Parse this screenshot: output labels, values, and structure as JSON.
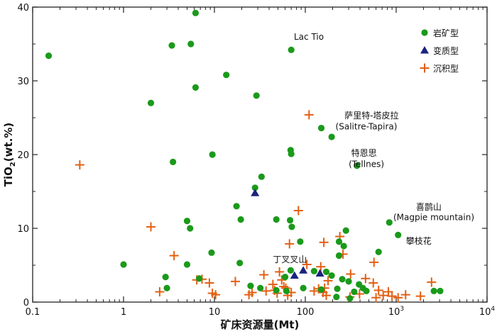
{
  "chart_data": {
    "type": "scatter",
    "xlabel": "矿床资源量(Mt)",
    "ylabel_main": "TiO",
    "ylabel_sub": "2",
    "ylabel_tail": "(wt.%)",
    "xscale": "log",
    "xlim": [
      0.1,
      10000
    ],
    "ylim": [
      0,
      40
    ],
    "x_ticks": [
      {
        "value": 0.1,
        "label": "0.1"
      },
      {
        "value": 1,
        "label": "1"
      },
      {
        "value": 10,
        "label": "10"
      },
      {
        "value": 100,
        "label": "100"
      },
      {
        "value": 1000,
        "label": "10",
        "sup": "3"
      },
      {
        "value": 10000,
        "label": "10",
        "sup": "4"
      }
    ],
    "y_ticks": [
      0,
      10,
      20,
      30,
      40
    ],
    "legend_position": "top-right",
    "series": [
      {
        "name": "岩矿型",
        "marker": "circle",
        "color": "#1a9a1a",
        "points": [
          [
            0.15,
            33.4
          ],
          [
            3.4,
            34.8
          ],
          [
            5.5,
            35.0
          ],
          [
            6.2,
            39.2
          ],
          [
            6.2,
            29.1
          ],
          [
            2.0,
            27.0
          ],
          [
            13.5,
            30.8
          ],
          [
            29,
            28.0
          ],
          [
            70,
            34.2
          ],
          [
            3.5,
            19.0
          ],
          [
            9.5,
            20.0
          ],
          [
            69,
            20.6
          ],
          [
            70,
            20.1
          ],
          [
            150,
            23.6
          ],
          [
            195,
            22.4
          ],
          [
            370,
            18.5
          ],
          [
            33,
            17.0
          ],
          [
            28,
            15.5
          ],
          [
            17.5,
            13.0
          ],
          [
            19.5,
            11.2
          ],
          [
            5.0,
            11.0
          ],
          [
            5.4,
            10.0
          ],
          [
            48,
            11.2
          ],
          [
            68,
            11.1
          ],
          [
            71,
            10.2
          ],
          [
            840,
            10.8
          ],
          [
            1050,
            9.1
          ],
          [
            280,
            9.7
          ],
          [
            88,
            8.2
          ],
          [
            235,
            8.2
          ],
          [
            265,
            7.6
          ],
          [
            640,
            6.8
          ],
          [
            235,
            6.3
          ],
          [
            9.3,
            6.7
          ],
          [
            1.0,
            5.1
          ],
          [
            5.0,
            5.1
          ],
          [
            19,
            5.3
          ],
          [
            2.9,
            3.4
          ],
          [
            6.8,
            3.2
          ],
          [
            60,
            3.4
          ],
          [
            69,
            4.3
          ],
          [
            125,
            4.2
          ],
          [
            170,
            4.1
          ],
          [
            195,
            3.6
          ],
          [
            255,
            3.1
          ],
          [
            300,
            2.8
          ],
          [
            390,
            2.4
          ],
          [
            3.0,
            1.9
          ],
          [
            25,
            2.2
          ],
          [
            32,
            1.9
          ],
          [
            48,
            1.6
          ],
          [
            62,
            1.5
          ],
          [
            95,
            1.9
          ],
          [
            150,
            1.7
          ],
          [
            225,
            1.8
          ],
          [
            345,
            1.4
          ],
          [
            430,
            1.9
          ],
          [
            470,
            1.5
          ],
          [
            2600,
            1.5
          ],
          [
            3050,
            1.5
          ],
          [
            220,
            0.7
          ],
          [
            310,
            0.5
          ]
        ]
      },
      {
        "name": "变质型",
        "marker": "triangle",
        "color": "#1a237e",
        "points": [
          [
            28,
            14.8
          ],
          [
            76,
            3.6
          ],
          [
            95,
            4.3
          ],
          [
            145,
            3.9
          ]
        ]
      },
      {
        "name": "沉积型",
        "marker": "plus",
        "color": "#e35f12",
        "points": [
          [
            0.33,
            18.6
          ],
          [
            2.0,
            10.2
          ],
          [
            3.6,
            6.3
          ],
          [
            2.5,
            1.4
          ],
          [
            6.4,
            3.0
          ],
          [
            7.3,
            3.1
          ],
          [
            8.8,
            2.6
          ],
          [
            9.5,
            1.2
          ],
          [
            10.3,
            1.0
          ],
          [
            17.0,
            2.8
          ],
          [
            24,
            1.0
          ],
          [
            26,
            1.3
          ],
          [
            35,
            3.7
          ],
          [
            37,
            1.5
          ],
          [
            44,
            2.4
          ],
          [
            46,
            1.6
          ],
          [
            49,
            1.2
          ],
          [
            52,
            4.1
          ],
          [
            55,
            3.0
          ],
          [
            58,
            2.1
          ],
          [
            61,
            1.9
          ],
          [
            64,
            0.9
          ],
          [
            70,
            1.3
          ],
          [
            84,
            12.4
          ],
          [
            110,
            25.4
          ],
          [
            67,
            7.9
          ],
          [
            104,
            5.1
          ],
          [
            125,
            1.5
          ],
          [
            140,
            1.8
          ],
          [
            148,
            4.8
          ],
          [
            157,
            1.3
          ],
          [
            163,
            1.9
          ],
          [
            178,
            2.9
          ],
          [
            170,
            0.9
          ],
          [
            160,
            8.1
          ],
          [
            240,
            8.9
          ],
          [
            260,
            6.5
          ],
          [
            315,
            3.8
          ],
          [
            395,
            1.1
          ],
          [
            460,
            3.2
          ],
          [
            560,
            2.6
          ],
          [
            570,
            5.4
          ],
          [
            640,
            1.6
          ],
          [
            720,
            0.9
          ],
          [
            820,
            1.4
          ],
          [
            900,
            0.8
          ],
          [
            1270,
            1.0
          ],
          [
            1850,
            0.8
          ],
          [
            2450,
            2.7
          ],
          [
            310,
            0.7
          ],
          [
            600,
            0.6
          ],
          [
            1050,
            0.6
          ]
        ]
      }
    ],
    "annotations": [
      {
        "text": "Lac Tio",
        "x": 75,
        "y": 35.6
      },
      {
        "text": "萨里特-塔皮拉",
        "x": 270,
        "y": 24.9
      },
      {
        "text": "(Salitre-Tapira)",
        "x": 215,
        "y": 23.4
      },
      {
        "text": "特恩思",
        "x": 320,
        "y": 19.8
      },
      {
        "text": "(Tellnes)",
        "x": 300,
        "y": 18.3
      },
      {
        "text": "喜鹊山",
        "x": 1650,
        "y": 12.5
      },
      {
        "text": "(Magpie mountain)",
        "x": 930,
        "y": 11.1
      },
      {
        "text": "攀枝花",
        "x": 1280,
        "y": 7.9
      },
      {
        "text": "丁叉叉山",
        "x": 44,
        "y": 5.4
      }
    ]
  }
}
